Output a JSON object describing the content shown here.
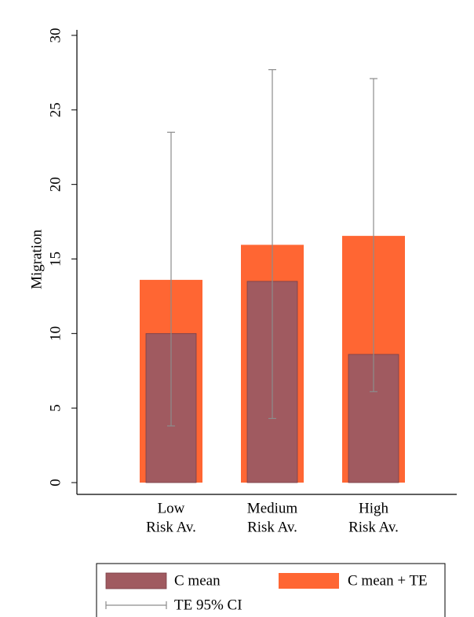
{
  "chart_data": {
    "type": "bar",
    "y_label": "Migration",
    "categories": [
      [
        "Low",
        "Risk Av."
      ],
      [
        "Medium",
        "Risk Av."
      ],
      [
        "High",
        "Risk Av."
      ]
    ],
    "series": [
      {
        "name": "C mean + TE",
        "color": "#ff6633",
        "values": [
          13.6,
          15.95,
          16.55
        ]
      },
      {
        "name": "C mean",
        "color": "#a05a60",
        "values": [
          10,
          13.5,
          8.6
        ]
      }
    ],
    "error_bars": {
      "name": "TE 95% CI",
      "color": "#8c8c8c",
      "lower": [
        3.8,
        4.3,
        6.1
      ],
      "upper": [
        23.5,
        27.7,
        27.1
      ]
    },
    "ylim": [
      0,
      30
    ],
    "yticks": [
      0,
      5,
      10,
      15,
      20,
      25,
      30
    ],
    "legend_position": "bottom"
  }
}
